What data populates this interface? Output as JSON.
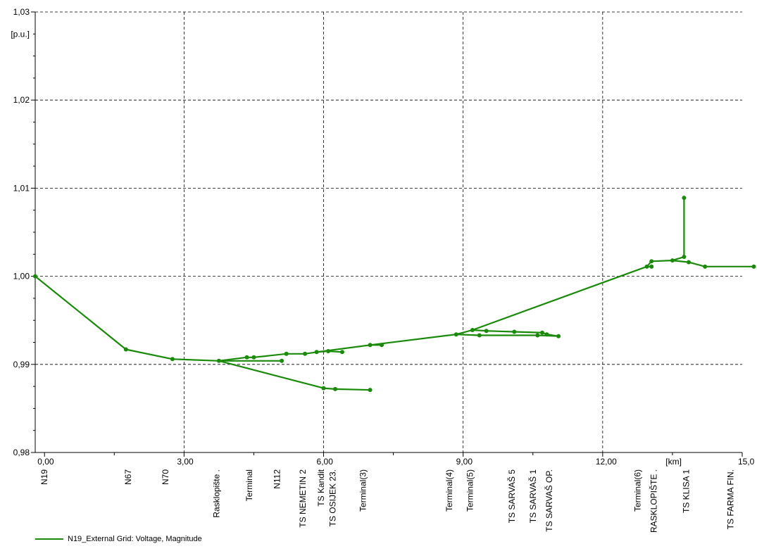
{
  "chart_data": {
    "type": "line",
    "ylabel": "[p.u.]",
    "xlabel": "[km]",
    "xlim": [
      -0.2,
      15.0
    ],
    "ylim": [
      0.98,
      1.03
    ],
    "yticks": [
      "0,98",
      "0,99",
      "1,00",
      "1,01",
      "1,02",
      "1,03"
    ],
    "xticks": [
      "0,00",
      "3,00",
      "6,00",
      "9,00",
      "12,00",
      "15,0"
    ],
    "grid": true,
    "line_color": "#1a8a0a",
    "legend_position": "bottom-left",
    "series": [
      {
        "name": "N19_External Grid: Voltage, Magnitude",
        "segments": [
          [
            [
              -0.2,
              1.0
            ],
            [
              1.75,
              0.9917
            ],
            [
              2.75,
              0.9906
            ],
            [
              3.75,
              0.9904
            ],
            [
              6.0,
              0.9873
            ],
            [
              6.25,
              0.9872
            ],
            [
              7.0,
              0.9871
            ]
          ],
          [
            [
              3.75,
              0.9904
            ],
            [
              5.1,
              0.9904
            ]
          ],
          [
            [
              3.75,
              0.9904
            ],
            [
              4.35,
              0.9908
            ],
            [
              4.5,
              0.9908
            ],
            [
              5.2,
              0.9912
            ],
            [
              5.6,
              0.9912
            ],
            [
              5.85,
              0.9914
            ],
            [
              6.1,
              0.9915
            ],
            [
              6.4,
              0.9914
            ]
          ],
          [
            [
              5.85,
              0.9914
            ],
            [
              7.0,
              0.9922
            ],
            [
              7.25,
              0.9922
            ]
          ],
          [
            [
              7.0,
              0.9922
            ],
            [
              8.85,
              0.9934
            ],
            [
              9.35,
              0.9933
            ],
            [
              10.6,
              0.9933
            ],
            [
              11.05,
              0.9932
            ]
          ],
          [
            [
              8.85,
              0.9934
            ],
            [
              9.2,
              0.9939
            ],
            [
              9.5,
              0.9938
            ],
            [
              10.1,
              0.9937
            ],
            [
              10.7,
              0.9936
            ],
            [
              10.8,
              0.9934
            ],
            [
              11.05,
              0.9932
            ]
          ],
          [
            [
              9.2,
              0.9939
            ],
            [
              12.95,
              1.0011
            ],
            [
              13.05,
              1.0011
            ]
          ],
          [
            [
              12.95,
              1.0011
            ],
            [
              13.05,
              1.0017
            ],
            [
              13.5,
              1.0018
            ],
            [
              13.85,
              1.0016
            ],
            [
              14.2,
              1.0011
            ],
            [
              15.25,
              1.0011
            ]
          ],
          [
            [
              13.5,
              1.0018
            ],
            [
              13.75,
              1.0022
            ],
            [
              13.75,
              1.0089
            ]
          ]
        ],
        "markers": [
          [
            -0.2,
            1.0
          ],
          [
            1.75,
            0.9917
          ],
          [
            2.75,
            0.9906
          ],
          [
            3.75,
            0.9904
          ],
          [
            4.35,
            0.9908
          ],
          [
            4.5,
            0.9908
          ],
          [
            5.1,
            0.9904
          ],
          [
            5.2,
            0.9912
          ],
          [
            5.6,
            0.9912
          ],
          [
            5.85,
            0.9914
          ],
          [
            6.1,
            0.9915
          ],
          [
            6.4,
            0.9914
          ],
          [
            6.0,
            0.9873
          ],
          [
            6.25,
            0.9872
          ],
          [
            7.0,
            0.9871
          ],
          [
            7.0,
            0.9922
          ],
          [
            7.25,
            0.9922
          ],
          [
            8.85,
            0.9934
          ],
          [
            9.2,
            0.9939
          ],
          [
            9.35,
            0.9933
          ],
          [
            9.5,
            0.9938
          ],
          [
            10.1,
            0.9937
          ],
          [
            10.6,
            0.9933
          ],
          [
            10.7,
            0.9936
          ],
          [
            10.8,
            0.9934
          ],
          [
            11.05,
            0.9932
          ],
          [
            12.95,
            1.0011
          ],
          [
            13.05,
            1.0011
          ],
          [
            13.05,
            1.0017
          ],
          [
            13.5,
            1.0018
          ],
          [
            13.75,
            1.0022
          ],
          [
            13.75,
            1.0089
          ],
          [
            13.85,
            1.0016
          ],
          [
            14.2,
            1.0011
          ],
          [
            15.25,
            1.0011
          ]
        ]
      }
    ],
    "node_labels": [
      {
        "x": 0.0,
        "text": "N19"
      },
      {
        "x": 1.8,
        "text": "N67"
      },
      {
        "x": 2.6,
        "text": "N70"
      },
      {
        "x": 3.7,
        "text": "Rasklopište ."
      },
      {
        "x": 4.4,
        "text": "Terminal"
      },
      {
        "x": 5.0,
        "text": "N112"
      },
      {
        "x": 5.55,
        "text": "TS NEMETIN 2"
      },
      {
        "x": 5.95,
        "text": "TS Kandit"
      },
      {
        "x": 6.2,
        "text": "TS OSIJEK 23."
      },
      {
        "x": 6.85,
        "text": "Terminal(3)"
      },
      {
        "x": 8.7,
        "text": "Terminal(4)"
      },
      {
        "x": 9.15,
        "text": "Terminal(5)"
      },
      {
        "x": 10.05,
        "text": "TS SARVAŠ 5"
      },
      {
        "x": 10.5,
        "text": "TS SARVAŠ 1"
      },
      {
        "x": 10.85,
        "text": "TS SARVAŠ OP."
      },
      {
        "x": 12.75,
        "text": "Terminal(6)"
      },
      {
        "x": 13.1,
        "text": "RASKLOPIŠTE ."
      },
      {
        "x": 13.8,
        "text": "TS KLISA 1"
      },
      {
        "x": 14.75,
        "text": "TS FARMA FIN."
      }
    ]
  }
}
